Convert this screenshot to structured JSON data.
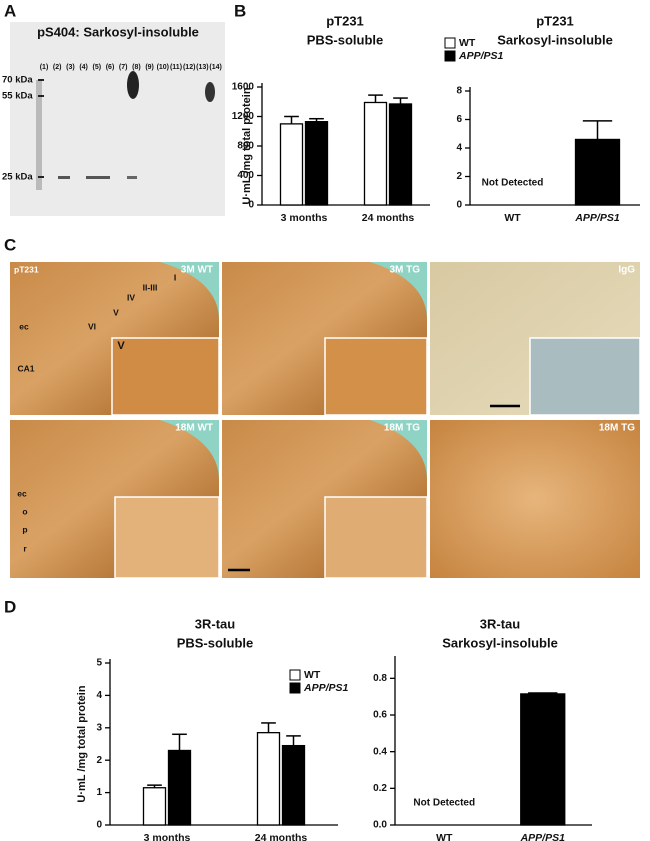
{
  "panel_letters": [
    "A",
    "B",
    "C",
    "D"
  ],
  "blot": {
    "title": "pS404: Sarkosyl-insoluble",
    "lanes": [
      "(1)",
      "(2)",
      "(3)",
      "(4)",
      "(5)",
      "(6)",
      "(7)",
      "(8)",
      "(9)",
      "(10)",
      "(11)",
      "(12)",
      "(13)",
      "(14)"
    ],
    "markers": [
      "70 kDa",
      "55 kDa",
      "25 kDa"
    ]
  },
  "histology": [
    {
      "title": "3M WT",
      "labels": [
        "pT231",
        "I",
        "II-III",
        "IV",
        "V",
        "VI",
        "ec",
        "CA1",
        "V"
      ]
    },
    {
      "title": "3M TG",
      "labels": []
    },
    {
      "title": "IgG",
      "labels": []
    },
    {
      "title": "18M WT",
      "labels": [
        "ec",
        "o",
        "p",
        "r"
      ]
    },
    {
      "title": "18M TG",
      "labels": []
    },
    {
      "title": "18M TG",
      "labels": []
    }
  ],
  "chart_data": [
    {
      "type": "bar",
      "title": "pT231",
      "subtitle": "PBS-soluble",
      "y_label": "U·mL /mg total protein",
      "categories": [
        "3 months",
        "24 months"
      ],
      "series": [
        {
          "name": "WT",
          "color": "#ffffff",
          "values": [
            1100,
            1390
          ],
          "errors": [
            100,
            100
          ]
        },
        {
          "name": "APP/PS1",
          "color": "#000000",
          "values": [
            1130,
            1370
          ],
          "errors": [
            40,
            80
          ]
        }
      ],
      "ylim": [
        0,
        1600
      ],
      "yticks": [
        0,
        400,
        800,
        1200,
        1600
      ]
    },
    {
      "type": "bar",
      "title": "pT231",
      "subtitle": "Sarkosyl-insoluble",
      "categories": [
        "WT",
        "APP/PS1"
      ],
      "values": [
        null,
        4.6
      ],
      "errors": [
        null,
        1.3
      ],
      "color": "#000000",
      "annotation": "Not Detected",
      "ylim": [
        0,
        8
      ],
      "yticks": [
        0,
        2,
        4,
        6,
        8
      ]
    },
    {
      "type": "bar",
      "title": "3R-tau",
      "subtitle": "PBS-soluble",
      "y_label": "U·mL /mg total protein",
      "categories": [
        "3 months",
        "24 months"
      ],
      "series": [
        {
          "name": "WT",
          "color": "#ffffff",
          "values": [
            1.15,
            2.85
          ],
          "errors": [
            0.08,
            0.3
          ]
        },
        {
          "name": "APP/PS1",
          "color": "#000000",
          "values": [
            2.3,
            2.45
          ],
          "errors": [
            0.5,
            0.3
          ]
        }
      ],
      "ylim": [
        0,
        5
      ],
      "yticks": [
        0,
        1,
        2,
        3,
        4,
        5
      ]
    },
    {
      "type": "bar",
      "title": "3R-tau",
      "subtitle": "Sarkosyl-insoluble",
      "categories": [
        "WT",
        "APP/PS1"
      ],
      "values": [
        null,
        0.715
      ],
      "errors": [
        null,
        0.005
      ],
      "color": "#000000",
      "annotation": "Not Detected",
      "ylim": [
        0,
        0.9
      ],
      "yticks": [
        {
          "value": 0,
          "label": "0.0"
        },
        0.2,
        0.4,
        0.6,
        0.8
      ]
    }
  ]
}
